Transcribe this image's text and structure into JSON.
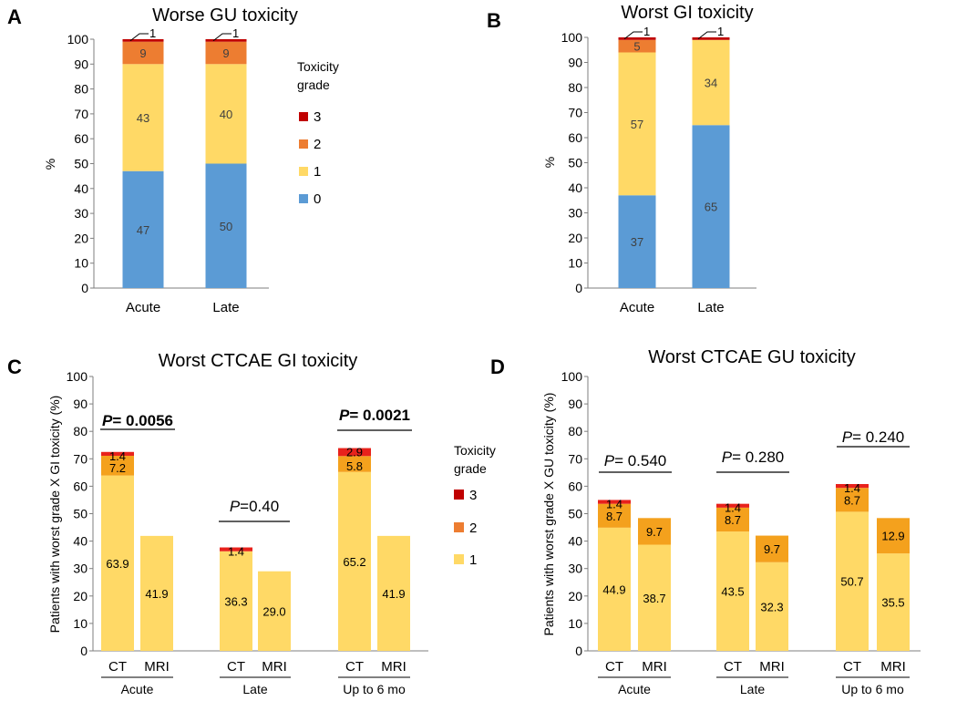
{
  "figure": {
    "panel_letters": [
      "A",
      "B",
      "C",
      "D"
    ]
  },
  "colors": {
    "grade0": "#5B9BD5",
    "grade1": "#FFD966",
    "grade2": "#ED7D31",
    "grade3": "#C00000",
    "grade1_cd": "#FFD966",
    "grade2_cd": "#F4A11D",
    "grade3_cd": "#E8221C"
  },
  "chart_data": [
    {
      "panel": "A",
      "type": "bar",
      "stacked": true,
      "title": "Worse GU toxicity",
      "ylabel": "%",
      "ylim": [
        0,
        100
      ],
      "yticks": [
        0,
        10,
        20,
        30,
        40,
        50,
        60,
        70,
        80,
        90,
        100
      ],
      "categories": [
        "Acute",
        "Late"
      ],
      "series": [
        {
          "name": "0",
          "values": [
            47,
            50
          ],
          "labels": [
            "47",
            "50"
          ]
        },
        {
          "name": "1",
          "values": [
            43,
            40
          ],
          "labels": [
            "43",
            "40"
          ]
        },
        {
          "name": "2",
          "values": [
            9,
            9
          ],
          "labels": [
            "9",
            "9"
          ]
        },
        {
          "name": "3",
          "values": [
            1,
            1
          ],
          "labels": [
            "1",
            "1"
          ]
        }
      ],
      "legend": {
        "title": [
          "Toxicity",
          "grade"
        ],
        "items": [
          "3",
          "2",
          "1",
          "0"
        ],
        "position": "right"
      }
    },
    {
      "panel": "B",
      "type": "bar",
      "stacked": true,
      "title": "Worst GI toxicity",
      "ylabel": "%",
      "ylim": [
        0,
        100
      ],
      "yticks": [
        0,
        10,
        20,
        30,
        40,
        50,
        60,
        70,
        80,
        90,
        100
      ],
      "categories": [
        "Acute",
        "Late"
      ],
      "series": [
        {
          "name": "0",
          "values": [
            37,
            65
          ],
          "labels": [
            "37",
            "65"
          ]
        },
        {
          "name": "1",
          "values": [
            57,
            34
          ],
          "labels": [
            "57",
            "34"
          ]
        },
        {
          "name": "2",
          "values": [
            5,
            0
          ],
          "labels": [
            "5",
            ""
          ]
        },
        {
          "name": "3",
          "values": [
            1,
            1
          ],
          "labels": [
            "1",
            "1"
          ]
        }
      ]
    },
    {
      "panel": "C",
      "type": "bar",
      "stacked": true,
      "title": "Worst CTCAE GI toxicity",
      "ylabel": "Patients with worst grade X GI toxicity (%)",
      "ylim": [
        0,
        100
      ],
      "yticks": [
        0,
        10,
        20,
        30,
        40,
        50,
        60,
        70,
        80,
        90,
        100
      ],
      "categories": [
        "CT",
        "MRI",
        "CT",
        "MRI",
        "CT",
        "MRI"
      ],
      "groups": [
        "Acute",
        "Late",
        "Up to 6 mo"
      ],
      "series": [
        {
          "name": "1",
          "values": [
            63.9,
            41.9,
            36.3,
            29.0,
            65.2,
            41.9
          ],
          "labels": [
            "63.9",
            "41.9",
            "36.3",
            "29.0",
            "65.2",
            "41.9"
          ]
        },
        {
          "name": "2",
          "values": [
            7.2,
            0,
            0,
            0,
            5.8,
            0
          ],
          "labels": [
            "7.2",
            "",
            "",
            "",
            "5.8",
            ""
          ]
        },
        {
          "name": "3",
          "values": [
            1.4,
            0,
            1.4,
            0,
            2.9,
            0
          ],
          "labels": [
            "1.4",
            "",
            "1.4",
            "",
            "2.9",
            ""
          ]
        }
      ],
      "pvalues": [
        {
          "prefix": "P",
          "text": "= 0.0056",
          "bold": true
        },
        {
          "prefix": "P",
          "text": "=0.40",
          "bold": false
        },
        {
          "prefix": "P",
          "text": "= 0.0021",
          "bold": true
        }
      ],
      "legend": {
        "title": [
          "Toxicity",
          "grade"
        ],
        "items": [
          "3",
          "2",
          "1"
        ],
        "position": "right"
      }
    },
    {
      "panel": "D",
      "type": "bar",
      "stacked": true,
      "title": "Worst CTCAE GU toxicity",
      "ylabel": "Patients with worst grade X GU toxicity (%)",
      "ylim": [
        0,
        100
      ],
      "yticks": [
        0,
        10,
        20,
        30,
        40,
        50,
        60,
        70,
        80,
        90,
        100
      ],
      "categories": [
        "CT",
        "MRI",
        "CT",
        "MRI",
        "CT",
        "MRI"
      ],
      "groups": [
        "Acute",
        "Late",
        "Up to 6 mo"
      ],
      "series": [
        {
          "name": "1",
          "values": [
            44.9,
            38.7,
            43.5,
            32.3,
            50.7,
            35.5
          ],
          "labels": [
            "44.9",
            "38.7",
            "43.5",
            "32.3",
            "50.7",
            "35.5"
          ]
        },
        {
          "name": "2",
          "values": [
            8.7,
            9.7,
            8.7,
            9.7,
            8.7,
            12.9
          ],
          "labels": [
            "8.7",
            "9.7",
            "8.7",
            "9.7",
            "8.7",
            "12.9"
          ]
        },
        {
          "name": "3",
          "values": [
            1.4,
            0,
            1.4,
            0,
            1.4,
            0
          ],
          "labels": [
            "1.4",
            "",
            "1.4",
            "",
            "1.4",
            ""
          ]
        }
      ],
      "pvalues": [
        {
          "prefix": "P",
          "text": "= 0.540",
          "bold": false
        },
        {
          "prefix": "P",
          "text": "= 0.280",
          "bold": false
        },
        {
          "prefix": "P",
          "text": "= 0.240",
          "bold": false
        }
      ]
    }
  ]
}
